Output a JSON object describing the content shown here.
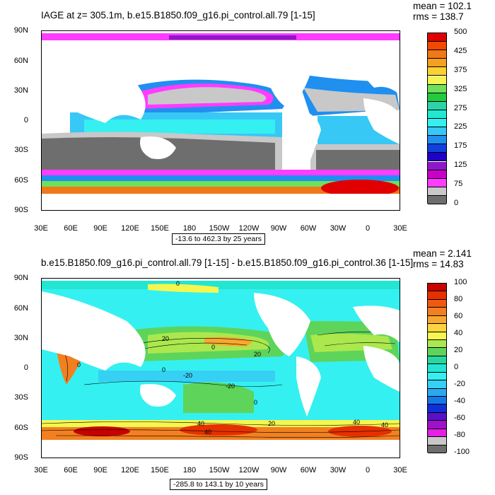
{
  "panels": [
    {
      "title": "IAGE at z= 305.1m, b.e15.B1850.f09_g16.pi_control.all.79 [1-15]",
      "stats": {
        "mean": "mean = 102.1",
        "rms": "rms = 138.7"
      },
      "range_text": "-13.6 to 462.3 by 25 years",
      "colorbar_labels": [
        "500",
        "425",
        "375",
        "325",
        "275",
        "225",
        "175",
        "125",
        "75",
        "0"
      ],
      "colors": [
        "#e00000",
        "#f04a00",
        "#f07818",
        "#f5a020",
        "#fcd130",
        "#f6f450",
        "#6ee05a",
        "#22ca40",
        "#2ad4a8",
        "#22e8d0",
        "#35f0f0",
        "#37c8f5",
        "#1f8ff0",
        "#1040e0",
        "#1f00c8",
        "#8c18c8",
        "#c800c8",
        "#ff3cff",
        "#c8c8c8",
        "#6e6e6e"
      ]
    },
    {
      "title": "b.e15.B1850.f09_g16.pi_control.all.79 [1-15] - b.e15.B1850.f09_g16.pi_control.36 [1-15]",
      "stats": {
        "mean": "mean = 2.141",
        "rms": "rms = 14.83"
      },
      "range_text": "-285.8 to 143.1 by 10 years",
      "colorbar_labels": [
        "100",
        "80",
        "60",
        "40",
        "20",
        "0",
        "-20",
        "-40",
        "-60",
        "-80",
        "-100"
      ],
      "colors": [
        "#c80000",
        "#e63000",
        "#f05a10",
        "#f28020",
        "#f8a830",
        "#fcd440",
        "#f5f650",
        "#aae84e",
        "#5ed45a",
        "#28d7a0",
        "#22e6d2",
        "#35f0f0",
        "#37d0f5",
        "#2aa8f0",
        "#1578e8",
        "#0e30d8",
        "#5a10c8",
        "#a010c8",
        "#e61ee6",
        "#c8c8c8",
        "#6e6e6e"
      ]
    }
  ],
  "lat_labels": [
    "90N",
    "60N",
    "30N",
    "0",
    "30S",
    "60S",
    "90S"
  ],
  "lon_labels": [
    "30E",
    "60E",
    "90E",
    "120E",
    "150E",
    "180",
    "150W",
    "120W",
    "90W",
    "60W",
    "30W",
    "0",
    "30E"
  ],
  "contour_labels_bottom": [
    "0",
    "20",
    "0",
    "20",
    "0",
    "0",
    "-20",
    "-20",
    "0",
    "40",
    "20",
    "40",
    "40",
    "40"
  ]
}
